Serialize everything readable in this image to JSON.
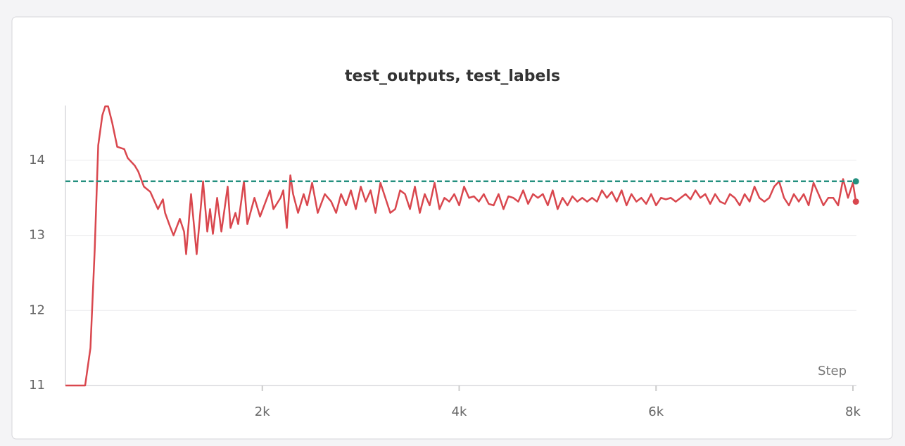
{
  "chart_data": {
    "type": "line",
    "title": "test_outputs, test_labels",
    "xlabel": "Step",
    "xlim": [
      0,
      8050
    ],
    "ylim": [
      11,
      14.73
    ],
    "xticks": [
      {
        "value": 2000,
        "label": "2k"
      },
      {
        "value": 4000,
        "label": "4k"
      },
      {
        "value": 6000,
        "label": "6k"
      },
      {
        "value": 8000,
        "label": "8k"
      }
    ],
    "yticks": [
      11,
      12,
      13,
      14
    ],
    "grid": true,
    "series": [
      {
        "color": "#d9474e",
        "line_style": "solid",
        "x": [
          0,
          200,
          254,
          297,
          333,
          375,
          404,
          433,
          475,
          526,
          597,
          633,
          704,
          740,
          797,
          862,
          940,
          990,
          1012,
          1062,
          1098,
          1162,
          1205,
          1226,
          1276,
          1333,
          1398,
          1441,
          1469,
          1498,
          1541,
          1584,
          1648,
          1677,
          1727,
          1755,
          1813,
          1848,
          1920,
          1977,
          2077,
          2113,
          2185,
          2213,
          2249,
          2285,
          2313,
          2363,
          2420,
          2456,
          2506,
          2563,
          2635,
          2700,
          2750,
          2800,
          2850,
          2900,
          2950,
          3000,
          3050,
          3100,
          3150,
          3200,
          3250,
          3300,
          3350,
          3400,
          3450,
          3500,
          3550,
          3600,
          3650,
          3700,
          3750,
          3800,
          3850,
          3900,
          3950,
          4000,
          4050,
          4100,
          4150,
          4200,
          4250,
          4300,
          4350,
          4400,
          4450,
          4500,
          4550,
          4600,
          4650,
          4700,
          4750,
          4800,
          4850,
          4900,
          4950,
          5000,
          5050,
          5100,
          5150,
          5200,
          5250,
          5300,
          5350,
          5400,
          5450,
          5500,
          5550,
          5600,
          5650,
          5700,
          5750,
          5800,
          5850,
          5900,
          5950,
          6000,
          6050,
          6100,
          6150,
          6200,
          6250,
          6300,
          6350,
          6400,
          6450,
          6500,
          6550,
          6600,
          6650,
          6700,
          6750,
          6800,
          6850,
          6900,
          6950,
          7000,
          7050,
          7100,
          7150,
          7200,
          7250,
          7300,
          7350,
          7400,
          7450,
          7500,
          7550,
          7600,
          7650,
          7700,
          7750,
          7800,
          7850,
          7900,
          7950,
          8000,
          8030
        ],
        "values": [
          11,
          11,
          11.5,
          12.8,
          14.2,
          14.6,
          14.72,
          14.72,
          14.5,
          14.18,
          14.15,
          14.03,
          13.93,
          13.85,
          13.65,
          13.58,
          13.35,
          13.48,
          13.3,
          13.12,
          13.0,
          13.22,
          13.05,
          12.75,
          13.55,
          12.75,
          13.72,
          13.05,
          13.35,
          13.02,
          13.5,
          13.05,
          13.65,
          13.1,
          13.3,
          13.15,
          13.72,
          13.15,
          13.5,
          13.25,
          13.6,
          13.35,
          13.5,
          13.6,
          13.1,
          13.8,
          13.55,
          13.3,
          13.55,
          13.4,
          13.7,
          13.3,
          13.55,
          13.45,
          13.3,
          13.55,
          13.4,
          13.6,
          13.35,
          13.65,
          13.45,
          13.6,
          13.3,
          13.7,
          13.5,
          13.3,
          13.35,
          13.6,
          13.55,
          13.35,
          13.65,
          13.3,
          13.55,
          13.4,
          13.7,
          13.35,
          13.5,
          13.45,
          13.55,
          13.4,
          13.65,
          13.5,
          13.52,
          13.45,
          13.55,
          13.42,
          13.4,
          13.55,
          13.35,
          13.52,
          13.5,
          13.45,
          13.6,
          13.42,
          13.55,
          13.5,
          13.55,
          13.4,
          13.6,
          13.35,
          13.5,
          13.4,
          13.52,
          13.45,
          13.5,
          13.45,
          13.5,
          13.45,
          13.6,
          13.5,
          13.58,
          13.45,
          13.6,
          13.4,
          13.55,
          13.45,
          13.5,
          13.42,
          13.55,
          13.4,
          13.5,
          13.48,
          13.5,
          13.45,
          13.5,
          13.55,
          13.48,
          13.6,
          13.5,
          13.55,
          13.42,
          13.55,
          13.45,
          13.42,
          13.55,
          13.5,
          13.4,
          13.55,
          13.45,
          13.65,
          13.5,
          13.45,
          13.5,
          13.65,
          13.72,
          13.5,
          13.4,
          13.55,
          13.45,
          13.55,
          13.4,
          13.7,
          13.55,
          13.4,
          13.5,
          13.5,
          13.4,
          13.75,
          13.5,
          13.7,
          13.45
        ]
      },
      {
        "color": "#24907f",
        "line_style": "dashed",
        "x": [
          0,
          8030
        ],
        "values": [
          13.72,
          13.72
        ]
      }
    ]
  }
}
